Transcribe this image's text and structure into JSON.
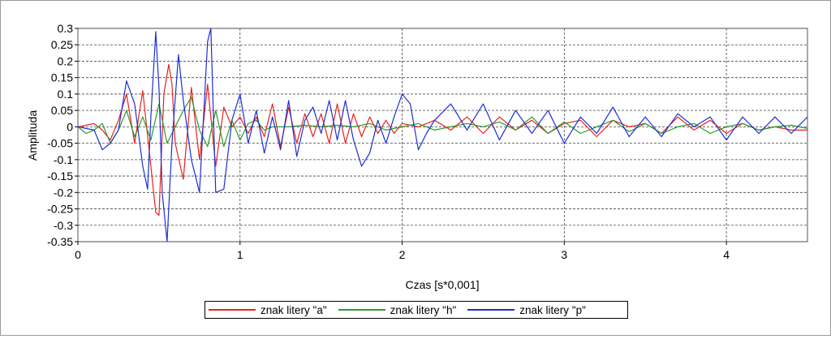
{
  "chart_data": {
    "type": "line",
    "title": "",
    "xlabel": "Czas [s*0,001]",
    "ylabel": "Amplituda",
    "xlim": [
      0,
      4.5
    ],
    "ylim": [
      -0.35,
      0.3
    ],
    "grid": true,
    "legend_position": "bottom",
    "x_ticks": [
      0,
      1,
      2,
      3,
      4
    ],
    "x_tick_labels": [
      "0",
      "1",
      "2",
      "3",
      "4"
    ],
    "y_ticks": [
      0.3,
      0.25,
      0.2,
      0.15,
      0.1,
      0.05,
      0,
      -0.05,
      -0.1,
      -0.15,
      -0.2,
      -0.25,
      -0.3,
      -0.35
    ],
    "y_tick_labels": [
      "0.3",
      "0.25",
      "0.2",
      "0.15",
      "0.1",
      "0.05",
      "0",
      "-0.05",
      "-0.1",
      "-0.15",
      "-0.2",
      "-0.25",
      "-0.3",
      "-0.35"
    ],
    "series": [
      {
        "name": "znak litery \"a\"",
        "color": "#e8221c",
        "x": [
          0,
          0.05,
          0.1,
          0.15,
          0.2,
          0.25,
          0.3,
          0.35,
          0.4,
          0.45,
          0.48,
          0.5,
          0.53,
          0.56,
          0.58,
          0.6,
          0.65,
          0.7,
          0.75,
          0.8,
          0.85,
          0.9,
          0.95,
          1.0,
          1.05,
          1.1,
          1.15,
          1.2,
          1.25,
          1.3,
          1.35,
          1.4,
          1.45,
          1.5,
          1.55,
          1.6,
          1.65,
          1.7,
          1.75,
          1.8,
          1.85,
          1.9,
          1.95,
          2.0,
          2.1,
          2.2,
          2.3,
          2.4,
          2.5,
          2.6,
          2.7,
          2.8,
          2.9,
          3.0,
          3.1,
          3.2,
          3.3,
          3.4,
          3.5,
          3.6,
          3.7,
          3.8,
          3.9,
          4.0,
          4.1,
          4.2,
          4.3,
          4.4,
          4.5
        ],
        "y": [
          0,
          0.005,
          0.01,
          -0.01,
          -0.04,
          0.02,
          0.1,
          -0.05,
          0.11,
          -0.12,
          -0.26,
          -0.27,
          0.1,
          0.19,
          0.13,
          -0.05,
          -0.16,
          0.12,
          -0.1,
          0.13,
          -0.12,
          0.06,
          0.0,
          0.03,
          -0.02,
          0.03,
          -0.03,
          0.07,
          -0.06,
          0.06,
          -0.05,
          0.04,
          -0.03,
          0.04,
          -0.05,
          0.07,
          -0.05,
          0.04,
          -0.03,
          0.03,
          -0.02,
          0.02,
          -0.02,
          0.01,
          0.0,
          0.02,
          -0.01,
          0.03,
          -0.02,
          0.03,
          -0.01,
          0.02,
          -0.02,
          0.01,
          0.02,
          -0.03,
          0.02,
          0.0,
          0.01,
          -0.02,
          0.03,
          -0.01,
          0.02,
          -0.02,
          0.01,
          -0.01,
          0.0,
          -0.01,
          -0.01
        ]
      },
      {
        "name": "znak litery \"h\"",
        "color": "#2a9c2a",
        "x": [
          0,
          0.05,
          0.1,
          0.15,
          0.2,
          0.25,
          0.3,
          0.35,
          0.4,
          0.45,
          0.5,
          0.55,
          0.6,
          0.65,
          0.7,
          0.75,
          0.8,
          0.85,
          0.9,
          0.95,
          1.0,
          1.05,
          1.1,
          1.15,
          1.2,
          1.3,
          1.4,
          1.5,
          1.6,
          1.7,
          1.8,
          1.9,
          2.0,
          2.1,
          2.2,
          2.3,
          2.4,
          2.5,
          2.6,
          2.7,
          2.8,
          2.9,
          3.0,
          3.1,
          3.2,
          3.3,
          3.4,
          3.5,
          3.6,
          3.7,
          3.8,
          3.9,
          4.0,
          4.1,
          4.2,
          4.3,
          4.4,
          4.5
        ],
        "y": [
          0,
          -0.02,
          -0.01,
          0.01,
          -0.05,
          -0.01,
          0.05,
          -0.03,
          0.03,
          -0.04,
          0.07,
          -0.05,
          0.0,
          0.05,
          0.09,
          -0.01,
          -0.06,
          0.05,
          -0.06,
          0.02,
          -0.04,
          0.01,
          0.02,
          -0.01,
          0.0,
          0.0,
          0.005,
          0.0,
          0.005,
          0.0,
          0.01,
          -0.01,
          0.0,
          0.01,
          -0.01,
          0.0,
          0.01,
          0.0,
          0.015,
          -0.01,
          0.03,
          -0.02,
          0.015,
          -0.02,
          0.0,
          0.02,
          -0.015,
          0.01,
          -0.02,
          0.0,
          0.01,
          -0.02,
          0.0,
          0.01,
          -0.01,
          0.0,
          0.005,
          -0.005
        ]
      },
      {
        "name": "znak litery \"p\"",
        "color": "#1c2fd6",
        "x": [
          0,
          0.1,
          0.15,
          0.2,
          0.25,
          0.3,
          0.35,
          0.4,
          0.43,
          0.45,
          0.48,
          0.5,
          0.52,
          0.55,
          0.58,
          0.62,
          0.65,
          0.7,
          0.75,
          0.8,
          0.82,
          0.85,
          0.9,
          0.95,
          1.0,
          1.05,
          1.1,
          1.15,
          1.2,
          1.25,
          1.3,
          1.35,
          1.4,
          1.45,
          1.5,
          1.55,
          1.6,
          1.65,
          1.7,
          1.75,
          1.8,
          1.85,
          1.9,
          1.95,
          2.0,
          2.05,
          2.1,
          2.15,
          2.2,
          2.3,
          2.4,
          2.5,
          2.6,
          2.7,
          2.8,
          2.9,
          3.0,
          3.1,
          3.2,
          3.3,
          3.4,
          3.5,
          3.6,
          3.7,
          3.8,
          3.9,
          4.0,
          4.1,
          4.2,
          4.3,
          4.4,
          4.5
        ],
        "y": [
          0,
          -0.01,
          -0.07,
          -0.05,
          -0.01,
          0.14,
          0.07,
          -0.12,
          -0.19,
          0.03,
          0.29,
          0.12,
          -0.2,
          -0.35,
          -0.05,
          0.22,
          0.08,
          -0.1,
          -0.2,
          0.26,
          0.3,
          -0.2,
          -0.19,
          0.02,
          0.1,
          -0.05,
          0.05,
          -0.08,
          0.03,
          -0.07,
          0.08,
          -0.09,
          0.02,
          0.06,
          -0.02,
          0.08,
          -0.04,
          0.08,
          -0.04,
          -0.12,
          -0.08,
          0.02,
          -0.05,
          0.03,
          0.1,
          0.07,
          -0.07,
          -0.02,
          0.02,
          0.07,
          -0.01,
          0.07,
          -0.04,
          0.05,
          -0.02,
          0.05,
          -0.05,
          0.03,
          -0.02,
          0.06,
          -0.03,
          0.03,
          -0.03,
          0.04,
          0.0,
          0.03,
          -0.04,
          0.03,
          -0.02,
          0.03,
          -0.02,
          0.03
        ]
      }
    ]
  }
}
